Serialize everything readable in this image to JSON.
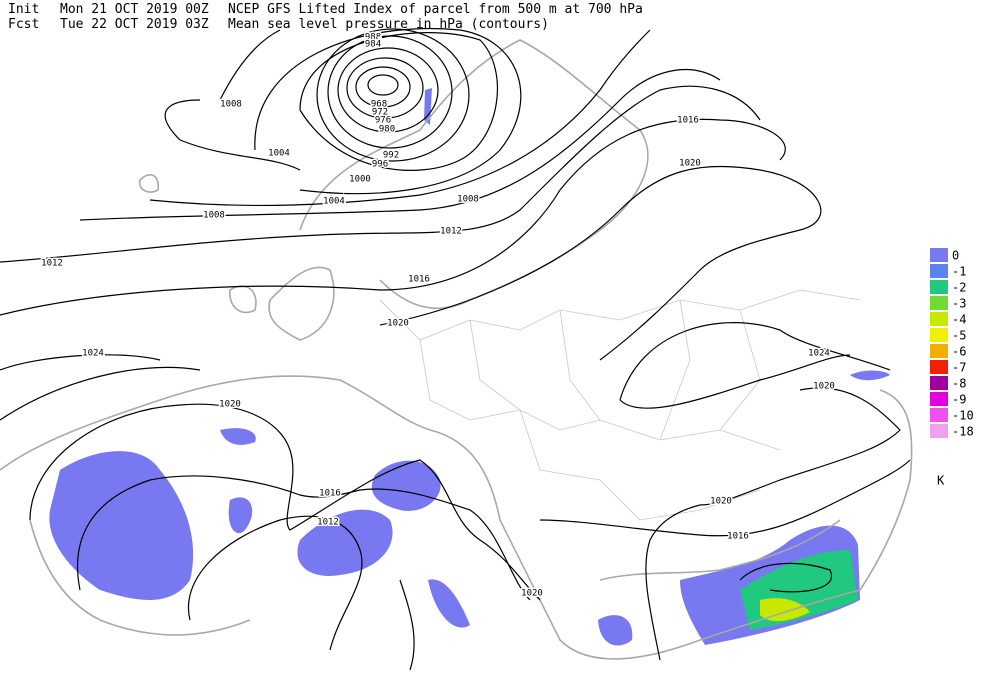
{
  "header": {
    "init_label": "Init",
    "init_time": "Mon 21 OCT 2019 00Z",
    "title": "NCEP GFS Lifted Index of parcel from 500 m at 700 hPa",
    "fcst_label": "Fcst",
    "fcst_time": "Tue 22 OCT 2019 03Z",
    "subtitle": "Mean sea level pressure in hPa (contours)"
  },
  "contour_labels": [
    988,
    984,
    968,
    972,
    976,
    980,
    992,
    996,
    1000,
    1004,
    1004,
    1008,
    1008,
    1008,
    1012,
    1012,
    1016,
    1016,
    1020,
    1020,
    1024,
    1024,
    1020,
    1020,
    1016,
    1012,
    1016,
    1020,
    1020
  ],
  "legend": {
    "items": [
      {
        "value": 0,
        "color": "#7878f0"
      },
      {
        "value": -1,
        "color": "#5a82f0"
      },
      {
        "value": -2,
        "color": "#20c880"
      },
      {
        "value": -3,
        "color": "#70dc30"
      },
      {
        "value": -4,
        "color": "#c8e800"
      },
      {
        "value": -5,
        "color": "#f0f000"
      },
      {
        "value": -6,
        "color": "#f0b000"
      },
      {
        "value": -7,
        "color": "#f02000"
      },
      {
        "value": -8,
        "color": "#a000a0"
      },
      {
        "value": -9,
        "color": "#e000e0"
      },
      {
        "value": -10,
        "color": "#f050f0"
      },
      {
        "value": -18,
        "color": "#f0a0f0"
      }
    ],
    "unit": "K"
  }
}
